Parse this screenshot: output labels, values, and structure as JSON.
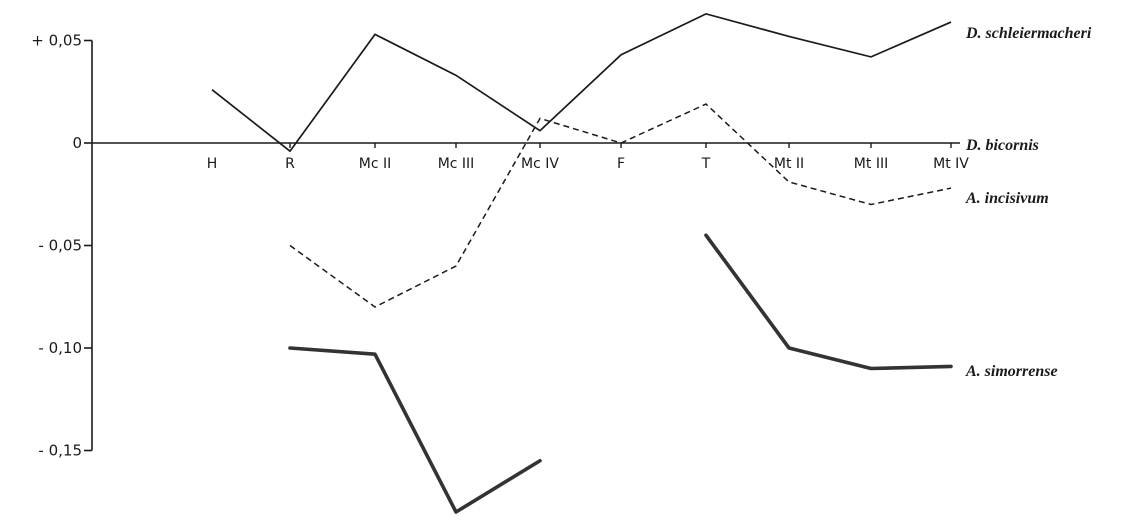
{
  "chart_data": {
    "type": "line",
    "categories": [
      "H",
      "R",
      "Mc II",
      "Mc III",
      "Mc IV",
      "F",
      "T",
      "Mt II",
      "Mt III",
      "Mt IV"
    ],
    "y_ticks": [
      {
        "value": 0.05,
        "label": "+ 0,05"
      },
      {
        "value": 0,
        "label": "0"
      },
      {
        "value": -0.05,
        "label": "- 0,05"
      },
      {
        "value": -0.1,
        "label": "- 0,10"
      },
      {
        "value": -0.15,
        "label": "- 0,15"
      }
    ],
    "ylim": [
      -0.17,
      0.07
    ],
    "grid": false,
    "legend": "line-end labels on the right",
    "series": [
      {
        "name": "D. schleiermacheri",
        "style": "solid",
        "values": [
          0.026,
          -0.004,
          0.053,
          0.033,
          0.006,
          0.043,
          0.063,
          0.052,
          0.042,
          0.059
        ]
      },
      {
        "name": "D. bicornis",
        "style": "axis",
        "values": [
          0,
          0,
          0,
          0,
          0,
          0,
          0,
          0,
          0,
          0
        ]
      },
      {
        "name": "A. incisivum",
        "style": "dashed",
        "values": [
          null,
          -0.05,
          -0.08,
          -0.06,
          0.012,
          0,
          0.019,
          -0.019,
          -0.03,
          -0.022
        ]
      },
      {
        "name": "A. simorrense",
        "style": "thick",
        "segments": [
          [
            null,
            -0.1,
            -0.103,
            -0.18,
            -0.155,
            null,
            null,
            null,
            null,
            null
          ],
          [
            null,
            null,
            null,
            null,
            null,
            null,
            -0.045,
            -0.1,
            -0.11,
            -0.109
          ]
        ]
      }
    ]
  }
}
